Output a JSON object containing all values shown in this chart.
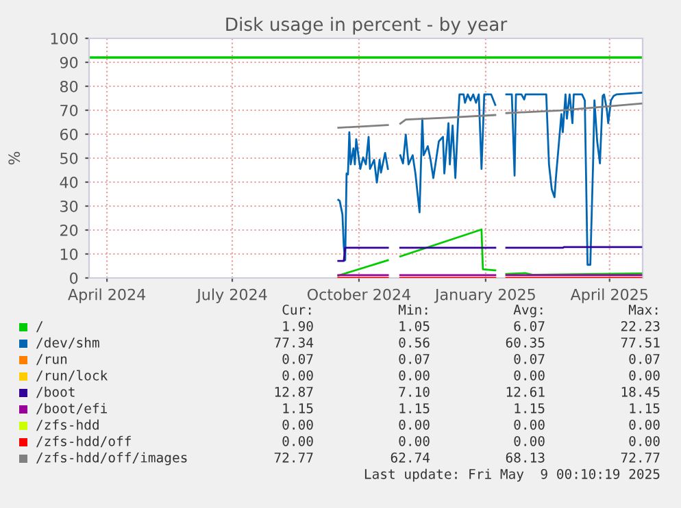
{
  "chart_data": {
    "type": "line",
    "title": "Disk usage in percent - by year",
    "ylabel": "%",
    "xlim": [
      "2024-04-02",
      "2025-05-09"
    ],
    "xticks": [
      {
        "value": "2024-04-15",
        "label": "April 2024"
      },
      {
        "value": "2024-07-15",
        "label": "July 2024"
      },
      {
        "value": "2024-10-15",
        "label": "October 2024"
      },
      {
        "value": "2025-01-15",
        "label": "January 2025"
      },
      {
        "value": "2025-04-15",
        "label": "April 2025"
      }
    ],
    "ylim": [
      0,
      100
    ],
    "yticks": [
      0,
      10,
      20,
      30,
      40,
      50,
      60,
      70,
      80,
      90,
      100
    ],
    "grid": true,
    "legend": "bottom",
    "line_style": "solid",
    "marker": "none",
    "ref_lines": [
      {
        "axis": "y",
        "value": 92,
        "color": "#00cc00"
      }
    ],
    "series": [
      {
        "name": "/",
        "color": "#00cc00",
        "x": [
          "2024-09-30",
          "2024-11-05",
          "2024-11-09",
          "2024-11-14",
          "2025-01-12",
          "2025-01-13",
          "2025-01-22",
          "2025-01-26",
          "2025-01-30",
          "2025-02-13",
          "2025-02-18",
          "2025-05-08"
        ],
        "values": [
          1.0,
          7.4,
          null,
          9.0,
          20.2,
          3.6,
          3.2,
          null,
          1.7,
          2.0,
          1.3,
          1.9
        ]
      },
      {
        "name": "/dev/shm",
        "color": "#0066b3",
        "x": [
          "2024-09-30",
          "2024-10-01",
          "2024-10-03",
          "2024-10-04",
          "2024-10-05",
          "2024-10-06",
          "2024-10-07",
          "2024-10-08",
          "2024-10-09",
          "2024-10-11",
          "2024-10-12",
          "2024-10-13",
          "2024-10-15",
          "2024-10-16",
          "2024-10-18",
          "2024-10-20",
          "2024-10-22",
          "2024-10-23",
          "2024-10-26",
          "2024-10-28",
          "2024-10-30",
          "2024-10-31",
          "2024-11-03",
          "2024-11-05",
          "2024-11-09",
          "2024-11-14",
          "2024-11-16",
          "2024-11-18",
          "2024-11-20",
          "2024-11-23",
          "2024-11-25",
          "2024-11-28",
          "2024-11-30",
          "2024-12-01",
          "2024-12-04",
          "2024-12-06",
          "2024-12-08",
          "2024-12-10",
          "2024-12-12",
          "2024-12-15",
          "2024-12-16",
          "2024-12-19",
          "2024-12-20",
          "2024-12-22",
          "2024-12-24",
          "2024-12-26",
          "2024-12-27",
          "2024-12-30",
          "2024-12-31",
          "2025-01-02",
          "2025-01-04",
          "2025-01-06",
          "2025-01-08",
          "2025-01-10",
          "2025-01-12",
          "2025-01-14",
          "2025-01-19",
          "2025-01-22",
          "2025-01-26",
          "2025-01-30",
          "2025-02-03",
          "2025-02-05",
          "2025-02-06",
          "2025-02-10",
          "2025-02-12",
          "2025-02-13",
          "2025-02-28",
          "2025-03-02",
          "2025-03-04",
          "2025-03-06",
          "2025-03-07",
          "2025-03-09",
          "2025-03-11",
          "2025-03-12",
          "2025-03-14",
          "2025-03-15",
          "2025-03-17",
          "2025-03-19",
          "2025-03-20",
          "2025-03-26",
          "2025-03-28",
          "2025-03-30",
          "2025-04-01",
          "2025-04-03",
          "2025-04-04",
          "2025-04-06",
          "2025-04-08",
          "2025-04-10",
          "2025-04-11",
          "2025-04-13",
          "2025-04-14",
          "2025-04-16",
          "2025-04-18",
          "2025-04-20",
          "2025-05-08"
        ],
        "values": [
          32.6,
          32.2,
          26.5,
          13.1,
          7.4,
          43.6,
          43.2,
          60.8,
          47.4,
          54.1,
          47.4,
          57.9,
          49.3,
          45.5,
          50.3,
          47.4,
          58.9,
          45.5,
          49.3,
          39.8,
          49.3,
          44.0,
          52.2,
          45.5,
          null,
          51.2,
          47.8,
          59.8,
          47.4,
          51.2,
          43.6,
          27.4,
          66.5,
          51.2,
          55.0,
          49.3,
          41.7,
          49.3,
          57.0,
          58.9,
          43.6,
          64.6,
          47.4,
          63.6,
          41.7,
          66.5,
          76.6,
          76.6,
          73.1,
          76.6,
          74.1,
          76.6,
          73.1,
          76.6,
          45.5,
          76.6,
          76.6,
          72.2,
          null,
          76.6,
          76.6,
          42.7,
          76.6,
          76.6,
          74.5,
          76.6,
          76.6,
          47.4,
          37.0,
          33.7,
          41.7,
          55.0,
          68.4,
          60.8,
          76.6,
          66.5,
          76.6,
          64.6,
          76.6,
          76.6,
          74.1,
          5.5,
          5.5,
          47.4,
          74.1,
          57.0,
          47.8,
          76.0,
          76.6,
          70.3,
          64.6,
          74.1,
          76.0,
          76.6,
          77.3
        ]
      },
      {
        "name": "/run",
        "color": "#ff8000",
        "values": [
          null
        ]
      },
      {
        "name": "/run/lock",
        "color": "#ffcc00",
        "values": [
          null
        ]
      },
      {
        "name": "/boot",
        "color": "#330099",
        "x": [
          "2024-09-30",
          "2024-10-04",
          "2024-10-05",
          "2024-11-05",
          "2024-11-09",
          "2024-11-14",
          "2025-01-22",
          "2025-01-26",
          "2025-01-30",
          "2025-03-12",
          "2025-03-13",
          "2025-05-08"
        ],
        "values": [
          7.1,
          7.1,
          12.6,
          12.6,
          null,
          12.6,
          12.6,
          null,
          12.6,
          12.6,
          12.9,
          12.9
        ]
      },
      {
        "name": "/boot/efi",
        "color": "#990099",
        "x": [
          "2024-09-30",
          "2024-11-05",
          "2024-11-09",
          "2024-11-14",
          "2025-01-22",
          "2025-01-26",
          "2025-01-30",
          "2025-05-08"
        ],
        "values": [
          1.2,
          1.2,
          null,
          1.2,
          1.2,
          null,
          1.2,
          1.2
        ]
      },
      {
        "name": "/zfs-hdd",
        "color": "#ccff00",
        "values": [
          null
        ]
      },
      {
        "name": "/zfs-hdd/off",
        "color": "#ff0000",
        "x": [
          "2024-09-30",
          "2024-11-05",
          "2024-11-09",
          "2024-11-14",
          "2025-01-22",
          "2025-01-26",
          "2025-01-30",
          "2025-05-08"
        ],
        "values": [
          0,
          0,
          null,
          0,
          0,
          null,
          0,
          0
        ]
      },
      {
        "name": "/zfs-hdd/off/images",
        "color": "#808080",
        "x": [
          "2024-09-30",
          "2024-11-05",
          "2024-11-09",
          "2024-11-14",
          "2024-11-18",
          "2024-12-18",
          "2025-01-22",
          "2025-01-26",
          "2025-01-30",
          "2025-03-10",
          "2025-04-05",
          "2025-05-08"
        ],
        "values": [
          62.7,
          63.8,
          null,
          64.4,
          66.1,
          66.9,
          68.0,
          null,
          68.8,
          69.9,
          71.2,
          72.8
        ]
      }
    ],
    "annotations": [
      "Cur:",
      "Min:",
      "Avg:",
      "Max:",
      "1.90",
      "1.05",
      "6.07",
      "22.23",
      "77.34",
      "0.56",
      "60.35",
      "77.51",
      "0.07",
      "0.07",
      "0.07",
      "0.07",
      "0.00",
      "0.00",
      "0.00",
      "0.00",
      "12.87",
      "7.10",
      "12.61",
      "18.45",
      "1.15",
      "1.15",
      "1.15",
      "1.15",
      "0.00",
      "0.00",
      "0.00",
      "0.00",
      "0.00",
      "0.00",
      "0.00",
      "0.00",
      "72.77",
      "62.74",
      "68.13",
      "72.77",
      "Last update: Fri May  9 00:10:19 2025"
    ]
  }
}
